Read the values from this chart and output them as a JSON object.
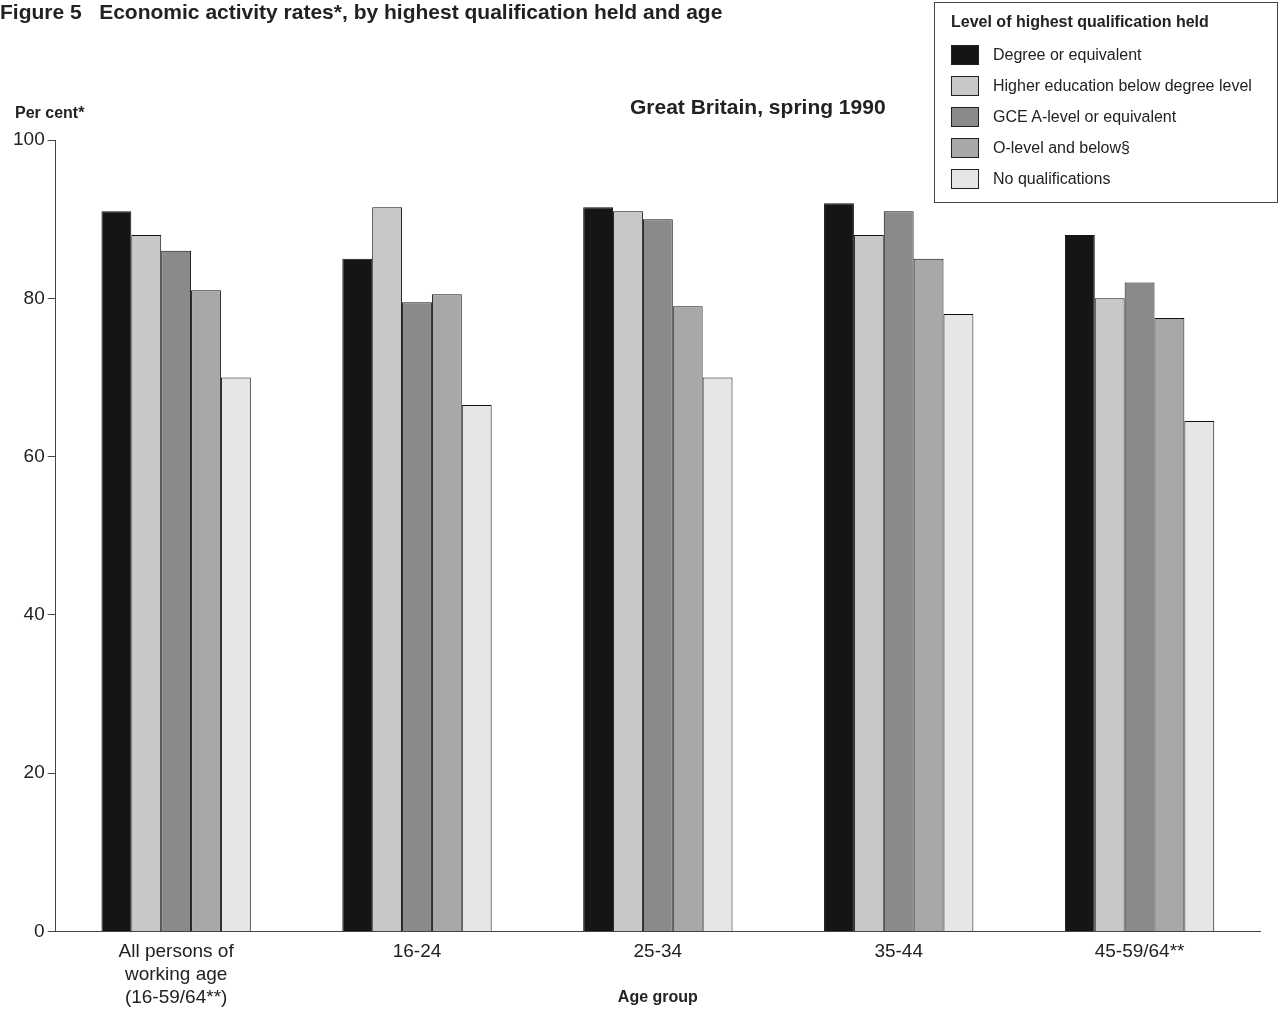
{
  "chart_data": {
    "type": "bar",
    "title": "Figure 5   Economic activity rates*, by highest qualification held and age",
    "subtitle": "Great Britain, spring 1990",
    "xlabel": "Age group",
    "ylabel": "Per cent*",
    "legend_title": "Level of highest qualification held",
    "categories": [
      "All persons of working age (16-59/64**)",
      "16-24",
      "25-34",
      "35-44",
      "45-59/64**"
    ],
    "series": [
      {
        "name": "Degree or equivalent",
        "color": "#151515",
        "values": [
          91,
          85,
          91.5,
          92,
          88
        ]
      },
      {
        "name": "Higher education below degree level",
        "color": "#c8c8c8",
        "values": [
          88,
          91.5,
          91,
          88,
          80
        ]
      },
      {
        "name": "GCE A-level or equivalent",
        "color": "#8a8a8a",
        "values": [
          86,
          79.5,
          90,
          91,
          82
        ]
      },
      {
        "name": "O-level and below§",
        "color": "#a8a8a8",
        "values": [
          81,
          80.5,
          79,
          85,
          77.5
        ]
      },
      {
        "name": "No qualifications",
        "color": "#e6e6e6",
        "values": [
          70,
          66.5,
          70,
          78,
          64.5
        ]
      }
    ],
    "ylim": [
      0,
      100
    ],
    "yticks": [
      0,
      20,
      40,
      60,
      80,
      100
    ],
    "grid": false,
    "legend": "top right"
  }
}
